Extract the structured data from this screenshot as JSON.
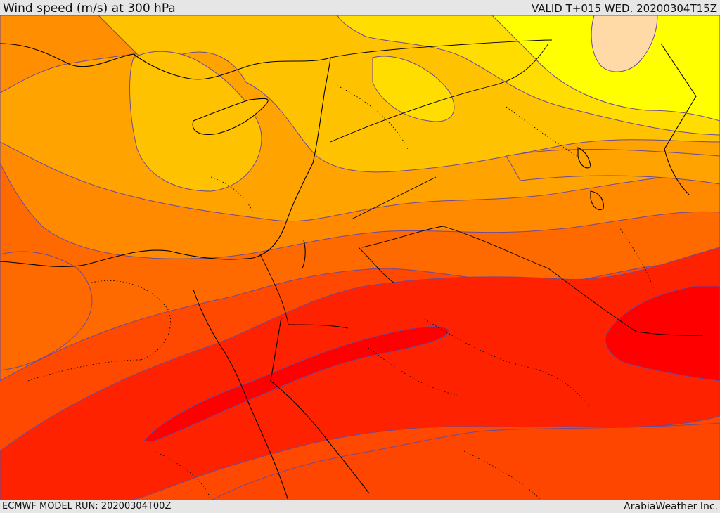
{
  "header": {
    "title": "Wind speed (m/s) at 300 hPa",
    "valid": "VALID T+015 WED. 20200304T15Z"
  },
  "footer": {
    "model_run": "ECMWF MODEL RUN: 20200304T00Z",
    "brand": "ArabiaWeather Inc."
  },
  "map": {
    "field": "wind speed",
    "level": "300 hPa",
    "units": "m/s",
    "palette": [
      "#ffd9a6",
      "#ffff00",
      "#ffe600",
      "#ffc200",
      "#ffa200",
      "#ff8a00",
      "#ff5a00",
      "#ff3000",
      "#ff1e00",
      "#ff0000"
    ],
    "contour_line_color": "#5b3a8f",
    "coastline_color": "#000000"
  }
}
